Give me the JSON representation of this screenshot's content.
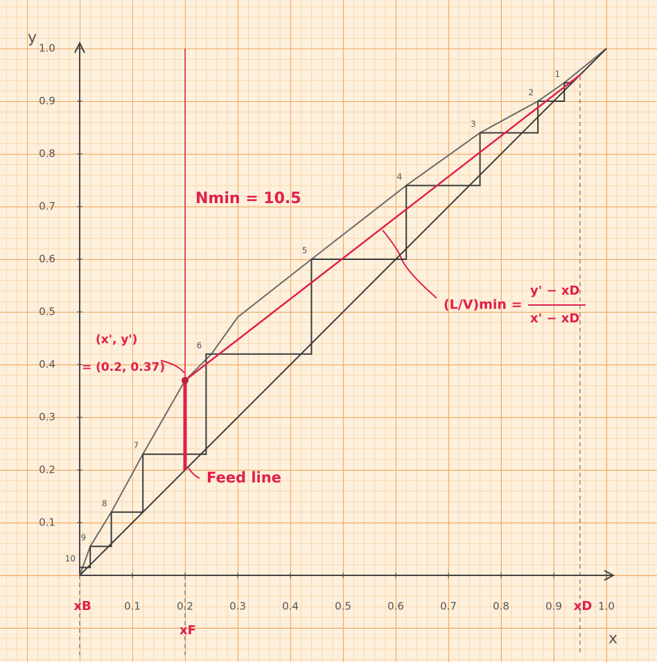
{
  "chart_data": {
    "type": "line",
    "x_label": "x",
    "y_label": "y",
    "xlim": [
      0,
      1
    ],
    "ylim": [
      0,
      1
    ],
    "xticks": [
      0.1,
      0.2,
      0.3,
      0.4,
      0.5,
      0.6,
      0.7,
      0.8,
      0.9,
      {
        "value": 1,
        "label": "1.0"
      }
    ],
    "yticks": [
      0.1,
      0.2,
      0.3,
      0.4,
      0.5,
      0.6,
      0.7,
      0.8,
      0.9,
      {
        "value": 1,
        "label": "1.0"
      }
    ],
    "series": [
      {
        "color": "#6a6a6a",
        "x": [
          0,
          0.02,
          0.06,
          0.12,
          0.2,
          0.25,
          0.3,
          0.44,
          0.62,
          0.76,
          0.87,
          0.92,
          1
        ],
        "values": [
          0,
          0.055,
          0.12,
          0.23,
          0.37,
          0.42,
          0.49,
          0.6,
          0.74,
          0.84,
          0.9,
          0.935,
          1
        ]
      },
      {
        "color": "#3a3a3a",
        "x": [
          0,
          1
        ],
        "values": [
          0,
          1
        ]
      },
      {
        "color": "#3a3a3a",
        "x": [
          0.935,
          0.92,
          0.92,
          0.87,
          0.87,
          0.76,
          0.76,
          0.62,
          0.62,
          0.44,
          0.44,
          0.24,
          0.24,
          0.12,
          0.12,
          0.06,
          0.06,
          0.02,
          0.02,
          0.0
        ],
        "values": [
          0.935,
          0.935,
          0.9,
          0.9,
          0.84,
          0.84,
          0.74,
          0.74,
          0.6,
          0.6,
          0.42,
          0.42,
          0.23,
          0.23,
          0.12,
          0.12,
          0.055,
          0.055,
          0.015,
          0.015
        ]
      },
      {
        "color": "#e0204a",
        "x": [
          0.2,
          0.95
        ],
        "values": [
          0.37,
          0.95
        ]
      },
      {
        "color": "#e0204a",
        "x": [
          0.2,
          0.2
        ],
        "values": [
          0.2,
          0.37
        ]
      },
      {
        "color": "#e0204a",
        "x": [
          0.2,
          0.2
        ],
        "values": [
          0.37,
          1
        ]
      }
    ],
    "stage_labels": [
      "1",
      "2",
      "3",
      "4",
      "5",
      "6",
      "7",
      "8",
      "9",
      "10"
    ],
    "point": {
      "x": 0.2,
      "y": 0.37,
      "color": "#c0203a"
    },
    "x_markers": [
      {
        "value": 0,
        "label": "xB"
      },
      {
        "value": 0.2,
        "label": "xF"
      },
      {
        "value": 0.95,
        "label": "xD"
      }
    ],
    "annotations": {
      "nmin": "Nmin = 10.5",
      "point_name": "(x', y')",
      "point_value": "= (0.2, 0.37)",
      "feed": "Feed line",
      "ratio": "(L/V)min =",
      "numerator": "y' − xD",
      "denominator": "x' − xD"
    }
  }
}
